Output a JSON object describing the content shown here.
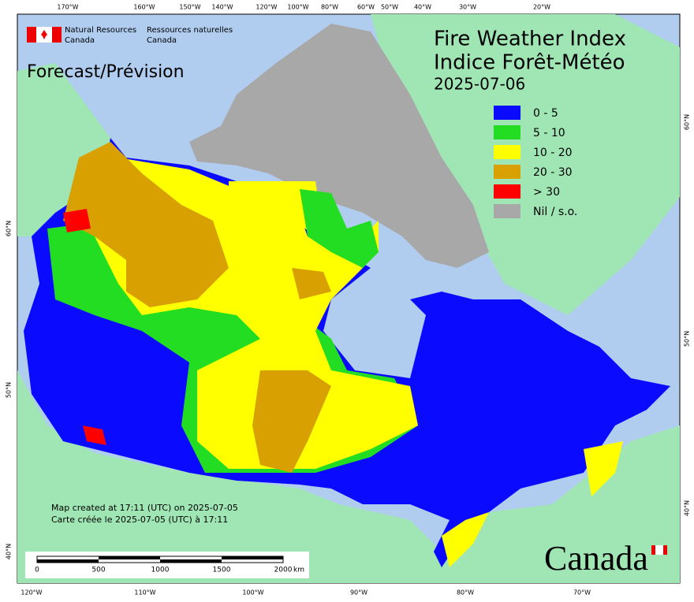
{
  "header": {
    "agency_en": "Natural Resources",
    "agency_en_2": "Canada",
    "agency_fr": "Ressources naturelles",
    "agency_fr_2": "Canada",
    "forecast": "Forecast/Prévision",
    "title_en": "Fire Weather Index",
    "title_fr": "Indice Forêt-Météo",
    "date": "2025-07-06"
  },
  "legend": [
    {
      "label": "0 - 5",
      "color": "#0a0aff"
    },
    {
      "label": "5 - 10",
      "color": "#22dd22"
    },
    {
      "label": "10 - 20",
      "color": "#ffff00"
    },
    {
      "label": "20 - 30",
      "color": "#d8a000"
    },
    {
      "label": "> 30",
      "color": "#ff0000"
    },
    {
      "label": "Nil / s.o.",
      "color": "#a8a8a8"
    }
  ],
  "graticule": {
    "top": [
      "170°W",
      "160°W",
      "150°W",
      "140°W",
      "120°W",
      "100°W",
      "80°W",
      "60°W",
      "50°W",
      "40°W",
      "30°W",
      "20°W"
    ],
    "bottom": [
      "120°W",
      "110°W",
      "100°W",
      "90°W",
      "80°W",
      "70°W"
    ],
    "left": [
      "60°N",
      "50°N",
      "40°N"
    ],
    "right": [
      "60°N",
      "50°N",
      "40°N"
    ]
  },
  "notes": {
    "created_en": "Map created at 17:11 (UTC) on 2025-07-05",
    "created_fr": "Carte créée le 2025-07-05 (UTC) à 17:11"
  },
  "scale_bar": {
    "labels": [
      "0",
      "500",
      "1000",
      "1500",
      "2000"
    ],
    "unit": "km"
  },
  "wordmark": "Canada"
}
